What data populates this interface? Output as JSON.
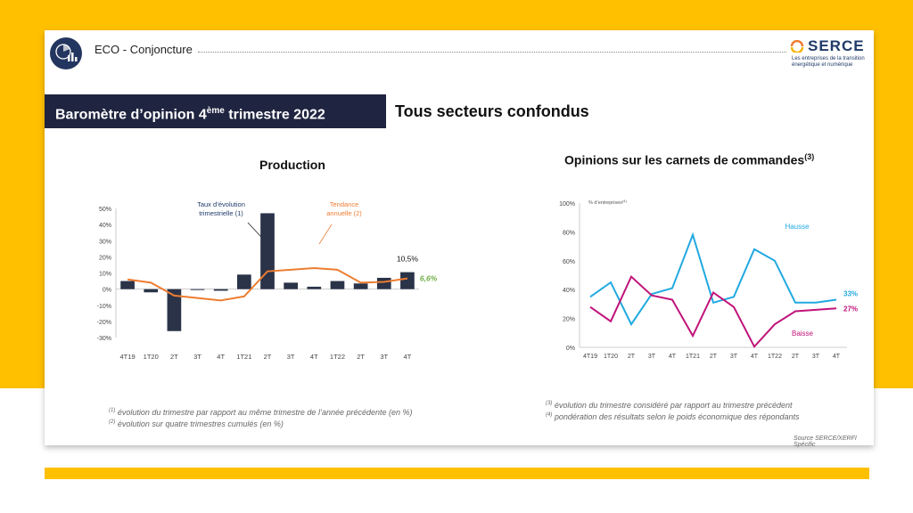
{
  "header": {
    "title": "ECO - Conjoncture",
    "brand_name": "SERCE",
    "brand_tagline": "Les entreprises de la transition énergétique et numérique"
  },
  "banner": {
    "text": "Baromètre d’opinion 4",
    "sup": "ème",
    "text_after": " trimestre 2022"
  },
  "subtitle": "Tous secteurs confondus",
  "production": {
    "title": "Production",
    "annotation_bars": [
      "Taux d’évolution",
      "trimestrielle (1)"
    ],
    "annotation_line": [
      "Tendance",
      "annuelle (2)"
    ],
    "label_bar_last": "10,5%",
    "label_line_last": "6,6%"
  },
  "orders": {
    "title": "Opinions sur les carnets de commandes",
    "title_sup": "(3)",
    "y_unit": "% d’entreprises",
    "y_unit_sup": "(4)",
    "label_hausse": "Hausse",
    "label_baisse": "Baisse",
    "label_hausse_last": "33%",
    "label_baisse_last": "27%"
  },
  "footnotes_left": [
    {
      "sup": "(1)",
      "text": " évolution du trimestre par rapport au même trimestre de l’année précédente (en %)"
    },
    {
      "sup": "(2)",
      "text": " évolution sur quatre trimestres cumulés (en %)"
    }
  ],
  "footnotes_right": [
    {
      "sup": "(3)",
      "text": " évolution du trimestre considéré par rapport au trimestre précédent"
    },
    {
      "sup": "(4)",
      "text": " pondération des résultats selon le poids économique des répondants"
    }
  ],
  "source": "Source SERCE/XERFI Spécific",
  "colors": {
    "bar": "#2a3348",
    "trend": "#ed7d31",
    "hausse": "#21a9e1",
    "baisse": "#c0137a",
    "banner": "#1f2440",
    "page_bg": "#ffc000",
    "label_green": "#70ad47"
  },
  "chart_data": [
    {
      "type": "bar",
      "title": "Production",
      "categories": [
        "4T19",
        "1T20",
        "2T",
        "3T",
        "4T",
        "1T21",
        "2T",
        "3T",
        "4T",
        "1T22",
        "2T",
        "3T",
        "4T"
      ],
      "ylim": [
        -30,
        50
      ],
      "yticks": [
        -30,
        -20,
        -10,
        0,
        10,
        20,
        30,
        40,
        50
      ],
      "ytick_labels": [
        "-30%",
        "-20%",
        "-10%",
        "0%",
        "10%",
        "20%",
        "30%",
        "40%",
        "50%"
      ],
      "grid": false,
      "series": [
        {
          "name": "Taux d’évolution trimestrielle (1)",
          "type": "bar",
          "values": [
            5,
            -2,
            -26,
            -0.5,
            -1,
            9,
            47,
            4,
            1.5,
            5,
            3.5,
            7,
            10.5
          ]
        },
        {
          "name": "Tendance annuelle (2)",
          "type": "line",
          "values": [
            6,
            4,
            -4,
            -5.5,
            -7,
            -4.5,
            11,
            12,
            13,
            12,
            4,
            4.5,
            6.6
          ]
        }
      ]
    },
    {
      "type": "line",
      "title": "Opinions sur les carnets de commandes",
      "categories": [
        "4T19",
        "1T20",
        "2T",
        "3T",
        "4T",
        "1T21",
        "2T",
        "3T",
        "4T",
        "1T22",
        "2T",
        "3T",
        "4T"
      ],
      "ylim": [
        0,
        100
      ],
      "yticks": [
        0,
        20,
        40,
        60,
        80,
        100
      ],
      "ytick_labels": [
        "0%",
        "20%",
        "40%",
        "60%",
        "80%",
        "100%"
      ],
      "grid": false,
      "series": [
        {
          "name": "Hausse",
          "values": [
            35,
            45,
            16,
            37,
            41,
            78,
            31,
            35,
            68,
            60,
            31,
            31,
            33
          ]
        },
        {
          "name": "Baisse",
          "values": [
            28,
            18,
            49,
            36,
            33,
            8,
            38,
            28,
            0.5,
            16,
            25,
            26,
            27
          ]
        }
      ]
    }
  ]
}
